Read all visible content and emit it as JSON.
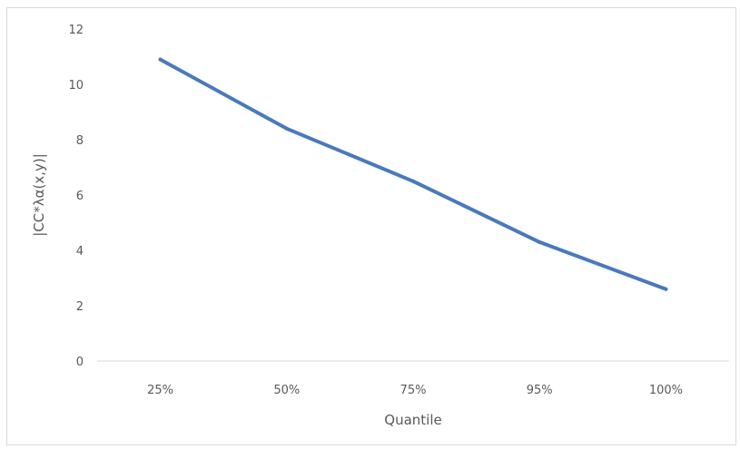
{
  "chart_data": {
    "type": "line",
    "categories": [
      "25%",
      "50%",
      "75%",
      "95%",
      "100%"
    ],
    "series": [
      {
        "values": [
          10.9,
          8.4,
          6.5,
          4.3,
          2.6
        ],
        "color": "#4a7ab8"
      }
    ],
    "xlabel": "Quantile",
    "ylabel": "|CC*λα(x,y)|",
    "ylim": [
      0,
      12
    ],
    "yticks": [
      0,
      2,
      4,
      6,
      8,
      10,
      12
    ],
    "grid": false,
    "legend": "none"
  }
}
